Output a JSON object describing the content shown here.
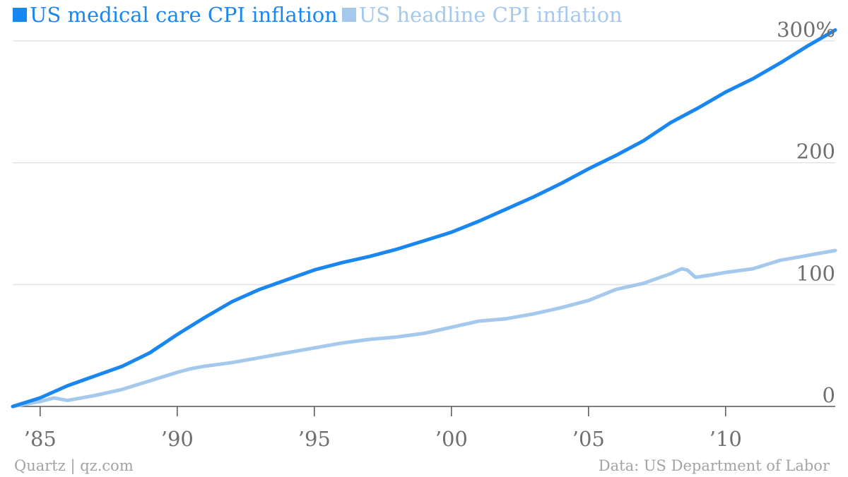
{
  "chart_data": {
    "type": "line",
    "title": "",
    "xlabel": "",
    "ylabel": "",
    "xlim": [
      1984.0,
      2014.0
    ],
    "ylim": [
      0,
      300
    ],
    "y_unit_suffix": "%",
    "grid": true,
    "legend_position": "top-left",
    "x_ticks": [
      {
        "value": 1985,
        "label": "’85"
      },
      {
        "value": 1990,
        "label": "’90"
      },
      {
        "value": 1995,
        "label": "’95"
      },
      {
        "value": 2000,
        "label": "’00"
      },
      {
        "value": 2005,
        "label": "’05"
      },
      {
        "value": 2010,
        "label": "’10"
      }
    ],
    "y_ticks": [
      {
        "value": 0,
        "label": "0"
      },
      {
        "value": 100,
        "label": "100"
      },
      {
        "value": 200,
        "label": "200"
      },
      {
        "value": 300,
        "label": "300%"
      }
    ],
    "series": [
      {
        "name": "US medical care CPI inflation",
        "color": "#1a86f0",
        "x": [
          1984.0,
          1985.0,
          1986.0,
          1987.0,
          1988.0,
          1989.0,
          1990.0,
          1991.0,
          1992.0,
          1993.0,
          1994.0,
          1995.0,
          1996.0,
          1997.0,
          1998.0,
          1999.0,
          2000.0,
          2001.0,
          2002.0,
          2003.0,
          2004.0,
          2005.0,
          2006.0,
          2007.0,
          2008.0,
          2009.0,
          2010.0,
          2011.0,
          2012.0,
          2013.0,
          2014.0
        ],
        "values": [
          0,
          7,
          17,
          25,
          33,
          44,
          59,
          73,
          86,
          96,
          104,
          112,
          118,
          123,
          129,
          136,
          143,
          152,
          162,
          172,
          183,
          195,
          206,
          218,
          233,
          245,
          258,
          269,
          282,
          296,
          309
        ]
      },
      {
        "name": "US headline CPI inflation",
        "color": "#a4c9ec",
        "x": [
          1984.0,
          1985.0,
          1985.5,
          1986.0,
          1986.5,
          1987.0,
          1988.0,
          1989.0,
          1990.0,
          1990.5,
          1991.0,
          1992.0,
          1993.0,
          1994.0,
          1995.0,
          1996.0,
          1997.0,
          1998.0,
          1999.0,
          2000.0,
          2001.0,
          2002.0,
          2003.0,
          2004.0,
          2005.0,
          2006.0,
          2007.0,
          2007.5,
          2008.0,
          2008.4,
          2008.6,
          2008.9,
          2009.5,
          2010.0,
          2011.0,
          2012.0,
          2013.0,
          2014.0
        ],
        "values": [
          0,
          4,
          7,
          5,
          7,
          9,
          14,
          21,
          28,
          31,
          33,
          36,
          40,
          44,
          48,
          52,
          55,
          57,
          60,
          65,
          70,
          72,
          76,
          81,
          87,
          96,
          101,
          105,
          109,
          113,
          112,
          106,
          108,
          110,
          113,
          120,
          124,
          128
        ]
      }
    ]
  },
  "footer": {
    "left": "Quartz | qz.com",
    "right": "Data: US Department of Labor"
  }
}
